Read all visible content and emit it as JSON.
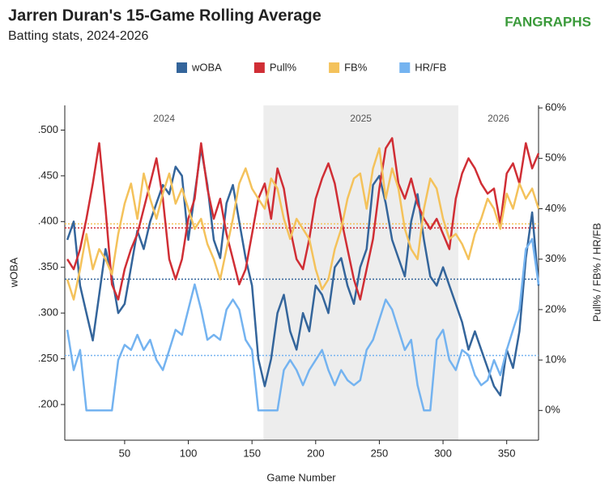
{
  "chart_data": {
    "type": "line",
    "title": "Jarren Duran's 15-Game Rolling Average",
    "subtitle": "Batting stats, 2024-2026",
    "logo": "FANGRAPHS",
    "x_label": "Game Number",
    "y_label": "wOBA",
    "y2_label": "Pull% / FB% / HR/FB",
    "xlim": [
      3,
      375
    ],
    "xticks": [
      50,
      100,
      150,
      200,
      250,
      300,
      350
    ],
    "ylim": [
      0.161,
      0.527
    ],
    "yticks": [
      {
        "value": 0.2,
        "label": ".200"
      },
      {
        "value": 0.25,
        "label": ".250"
      },
      {
        "value": 0.3,
        "label": ".300"
      },
      {
        "value": 0.35,
        "label": ".350"
      },
      {
        "value": 0.4,
        "label": ".400"
      },
      {
        "value": 0.45,
        "label": ".450"
      },
      {
        "value": 0.5,
        "label": ".500"
      }
    ],
    "y2lim": [
      -5.9,
      60.5
    ],
    "y2ticks": [
      {
        "value": 0,
        "label": "0%"
      },
      {
        "value": 10,
        "label": "10%"
      },
      {
        "value": 20,
        "label": "20%"
      },
      {
        "value": 30,
        "label": "30%"
      },
      {
        "value": 40,
        "label": "40%"
      },
      {
        "value": 50,
        "label": "50%"
      },
      {
        "value": 60,
        "label": "60%"
      }
    ],
    "seasons": [
      {
        "label": "2024",
        "start": 3,
        "end": 159,
        "shaded": false
      },
      {
        "label": "2025",
        "start": 159,
        "end": 312,
        "shaded": true
      },
      {
        "label": "2026",
        "start": 312,
        "end": 375,
        "shaded": false
      }
    ],
    "x": [
      5,
      10,
      15,
      20,
      25,
      30,
      35,
      40,
      45,
      50,
      55,
      60,
      65,
      70,
      75,
      80,
      85,
      90,
      95,
      100,
      105,
      110,
      115,
      120,
      125,
      130,
      135,
      140,
      145,
      150,
      155,
      160,
      165,
      170,
      175,
      180,
      185,
      190,
      195,
      200,
      205,
      210,
      215,
      220,
      225,
      230,
      235,
      240,
      245,
      250,
      255,
      260,
      265,
      270,
      275,
      280,
      285,
      290,
      295,
      300,
      305,
      310,
      315,
      320,
      325,
      330,
      335,
      340,
      345,
      350,
      355,
      360,
      365,
      370,
      375
    ],
    "series": [
      {
        "name": "wOBA",
        "color": "#34659b",
        "average": 0.337,
        "values": [
          0.38,
          0.4,
          0.33,
          0.3,
          0.27,
          0.32,
          0.37,
          0.34,
          0.3,
          0.31,
          0.35,
          0.39,
          0.37,
          0.4,
          0.42,
          0.44,
          0.43,
          0.46,
          0.45,
          0.38,
          0.43,
          0.48,
          0.44,
          0.38,
          0.36,
          0.42,
          0.44,
          0.4,
          0.36,
          0.33,
          0.25,
          0.22,
          0.25,
          0.3,
          0.32,
          0.28,
          0.26,
          0.3,
          0.28,
          0.33,
          0.32,
          0.3,
          0.35,
          0.36,
          0.33,
          0.31,
          0.35,
          0.37,
          0.44,
          0.45,
          0.42,
          0.38,
          0.36,
          0.34,
          0.4,
          0.43,
          0.38,
          0.34,
          0.33,
          0.35,
          0.33,
          0.31,
          0.29,
          0.26,
          0.28,
          0.26,
          0.24,
          0.22,
          0.21,
          0.26,
          0.24,
          0.28,
          0.36,
          0.41,
          0.33
        ]
      },
      {
        "name": "Pull%",
        "color": "#d02e35",
        "axis": "y2",
        "average": 36.2,
        "values": [
          30,
          28,
          32,
          38,
          45,
          53,
          40,
          25,
          22,
          28,
          32,
          35,
          40,
          45,
          50,
          42,
          30,
          26,
          30,
          38,
          42,
          53,
          44,
          38,
          42,
          35,
          30,
          25,
          28,
          35,
          42,
          45,
          38,
          48,
          44,
          36,
          30,
          28,
          34,
          42,
          46,
          49,
          45,
          38,
          32,
          26,
          22,
          28,
          34,
          44,
          52,
          54,
          45,
          42,
          46,
          41,
          38,
          36,
          38,
          35,
          32,
          42,
          47,
          50,
          48,
          45,
          43,
          44,
          37,
          47,
          49,
          45,
          53,
          48,
          51
        ]
      },
      {
        "name": "FB%",
        "color": "#f4c25b",
        "axis": "y2",
        "average": 37.0,
        "values": [
          26,
          22,
          28,
          35,
          28,
          32,
          30,
          27,
          35,
          41,
          45,
          38,
          47,
          42,
          38,
          43,
          47,
          41,
          44,
          40,
          36,
          38,
          33,
          30,
          26,
          32,
          38,
          45,
          48,
          44,
          42,
          40,
          46,
          44,
          38,
          34,
          38,
          36,
          34,
          28,
          24,
          26,
          32,
          36,
          42,
          46,
          47,
          40,
          48,
          52,
          42,
          48,
          44,
          36,
          32,
          30,
          40,
          46,
          44,
          38,
          34,
          35,
          33,
          30,
          35,
          38,
          42,
          40,
          36,
          43,
          40,
          45,
          42,
          44,
          40
        ]
      },
      {
        "name": "HR/FB",
        "color": "#74b3f0",
        "axis": "y2",
        "average": 10.9,
        "values": [
          16,
          8,
          12,
          0,
          0,
          0,
          0,
          0,
          10,
          13,
          12,
          15,
          12,
          14,
          10,
          8,
          12,
          16,
          15,
          20,
          25,
          20,
          14,
          15,
          14,
          20,
          22,
          20,
          14,
          12,
          0,
          0,
          0,
          0,
          8,
          10,
          8,
          5,
          8,
          10,
          12,
          8,
          5,
          8,
          6,
          5,
          6,
          12,
          14,
          18,
          22,
          20,
          16,
          12,
          14,
          5,
          0,
          0,
          14,
          16,
          10,
          8,
          12,
          11,
          7,
          5,
          6,
          10,
          7,
          12,
          16,
          20,
          32,
          34,
          25
        ]
      }
    ]
  }
}
